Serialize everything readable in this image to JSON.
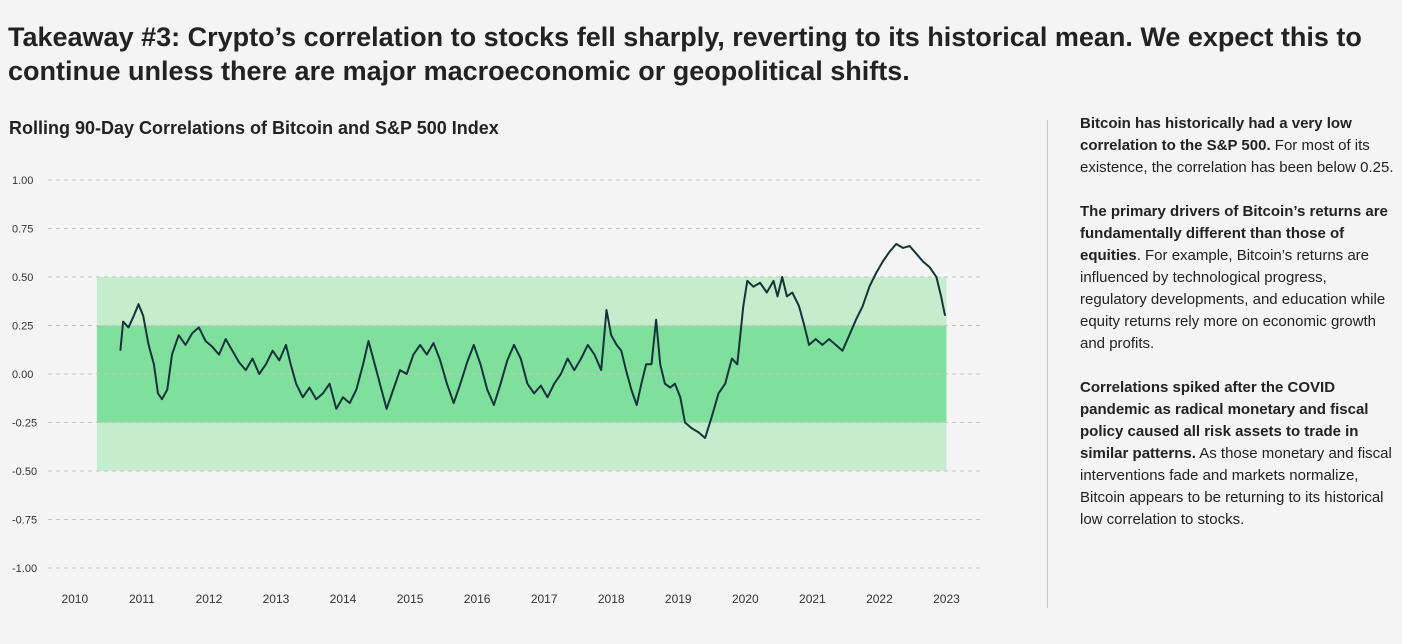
{
  "headline": "Takeaway #3: Crypto’s correlation to stocks fell sharply, reverting to its historical mean. We expect this to continue unless there are major macroeconomic or geopolitical shifts.",
  "chart_data": {
    "type": "line",
    "title": "Rolling 90-Day Correlations of Bitcoin and S&P 500 Index",
    "xlabel": "",
    "ylabel": "",
    "xlim": [
      2009.6,
      2023.5
    ],
    "ylim": [
      -1.0,
      1.0
    ],
    "y_ticks": [
      "1.00",
      "0.75",
      "0.50",
      "0.25",
      "0.00",
      "-0.25",
      "-0.50",
      "-0.75",
      "-1.00"
    ],
    "y_tick_values": [
      1.0,
      0.75,
      0.5,
      0.25,
      0.0,
      -0.25,
      -0.5,
      -0.75,
      -1.0
    ],
    "x_ticks": [
      "2010",
      "2011",
      "2012",
      "2013",
      "2014",
      "2015",
      "2016",
      "2017",
      "2018",
      "2019",
      "2020",
      "2021",
      "2022",
      "2023"
    ],
    "grid": true,
    "bands": [
      {
        "name": "outer",
        "x_start": 2010.33,
        "x_end": 2023.0,
        "y_low": -0.5,
        "y_high": 0.5,
        "color": "#c5eccd"
      },
      {
        "name": "inner",
        "x_start": 2010.33,
        "x_end": 2023.0,
        "y_low": -0.25,
        "y_high": 0.25,
        "color": "#7fe09d"
      }
    ],
    "series": [
      {
        "name": "Rolling 90-Day Correlation",
        "color": "#16323a",
        "points": [
          [
            2010.68,
            0.12
          ],
          [
            2010.72,
            0.27
          ],
          [
            2010.8,
            0.24
          ],
          [
            2010.88,
            0.3
          ],
          [
            2010.95,
            0.36
          ],
          [
            2011.02,
            0.3
          ],
          [
            2011.1,
            0.15
          ],
          [
            2011.18,
            0.05
          ],
          [
            2011.24,
            -0.1
          ],
          [
            2011.3,
            -0.13
          ],
          [
            2011.38,
            -0.08
          ],
          [
            2011.45,
            0.1
          ],
          [
            2011.55,
            0.2
          ],
          [
            2011.65,
            0.15
          ],
          [
            2011.75,
            0.21
          ],
          [
            2011.85,
            0.24
          ],
          [
            2011.95,
            0.17
          ],
          [
            2012.05,
            0.14
          ],
          [
            2012.15,
            0.1
          ],
          [
            2012.25,
            0.18
          ],
          [
            2012.35,
            0.12
          ],
          [
            2012.45,
            0.06
          ],
          [
            2012.55,
            0.02
          ],
          [
            2012.65,
            0.08
          ],
          [
            2012.75,
            0.0
          ],
          [
            2012.85,
            0.05
          ],
          [
            2012.95,
            0.12
          ],
          [
            2013.05,
            0.07
          ],
          [
            2013.15,
            0.15
          ],
          [
            2013.22,
            0.05
          ],
          [
            2013.3,
            -0.05
          ],
          [
            2013.4,
            -0.12
          ],
          [
            2013.5,
            -0.07
          ],
          [
            2013.6,
            -0.13
          ],
          [
            2013.7,
            -0.1
          ],
          [
            2013.8,
            -0.05
          ],
          [
            2013.9,
            -0.18
          ],
          [
            2014.0,
            -0.12
          ],
          [
            2014.1,
            -0.15
          ],
          [
            2014.2,
            -0.08
          ],
          [
            2014.3,
            0.05
          ],
          [
            2014.38,
            0.17
          ],
          [
            2014.45,
            0.08
          ],
          [
            2014.55,
            -0.05
          ],
          [
            2014.65,
            -0.18
          ],
          [
            2014.75,
            -0.08
          ],
          [
            2014.85,
            0.02
          ],
          [
            2014.95,
            0.0
          ],
          [
            2015.05,
            0.1
          ],
          [
            2015.15,
            0.15
          ],
          [
            2015.25,
            0.1
          ],
          [
            2015.35,
            0.16
          ],
          [
            2015.45,
            0.07
          ],
          [
            2015.55,
            -0.05
          ],
          [
            2015.65,
            -0.15
          ],
          [
            2015.75,
            -0.05
          ],
          [
            2015.85,
            0.06
          ],
          [
            2015.95,
            0.15
          ],
          [
            2016.05,
            0.05
          ],
          [
            2016.15,
            -0.08
          ],
          [
            2016.25,
            -0.16
          ],
          [
            2016.35,
            -0.05
          ],
          [
            2016.45,
            0.07
          ],
          [
            2016.55,
            0.15
          ],
          [
            2016.65,
            0.08
          ],
          [
            2016.75,
            -0.05
          ],
          [
            2016.85,
            -0.1
          ],
          [
            2016.95,
            -0.06
          ],
          [
            2017.05,
            -0.12
          ],
          [
            2017.15,
            -0.05
          ],
          [
            2017.25,
            0.0
          ],
          [
            2017.35,
            0.08
          ],
          [
            2017.45,
            0.02
          ],
          [
            2017.55,
            0.08
          ],
          [
            2017.65,
            0.15
          ],
          [
            2017.75,
            0.1
          ],
          [
            2017.85,
            0.02
          ],
          [
            2017.93,
            0.33
          ],
          [
            2018.0,
            0.2
          ],
          [
            2018.08,
            0.15
          ],
          [
            2018.15,
            0.12
          ],
          [
            2018.22,
            0.02
          ],
          [
            2018.3,
            -0.08
          ],
          [
            2018.38,
            -0.16
          ],
          [
            2018.45,
            -0.05
          ],
          [
            2018.52,
            0.05
          ],
          [
            2018.6,
            0.05
          ],
          [
            2018.67,
            0.28
          ],
          [
            2018.73,
            0.05
          ],
          [
            2018.8,
            -0.05
          ],
          [
            2018.88,
            -0.07
          ],
          [
            2018.95,
            -0.05
          ],
          [
            2019.03,
            -0.12
          ],
          [
            2019.1,
            -0.25
          ],
          [
            2019.2,
            -0.28
          ],
          [
            2019.3,
            -0.3
          ],
          [
            2019.4,
            -0.33
          ],
          [
            2019.5,
            -0.22
          ],
          [
            2019.6,
            -0.1
          ],
          [
            2019.7,
            -0.05
          ],
          [
            2019.8,
            0.08
          ],
          [
            2019.88,
            0.05
          ],
          [
            2019.97,
            0.35
          ],
          [
            2020.03,
            0.48
          ],
          [
            2020.12,
            0.45
          ],
          [
            2020.22,
            0.47
          ],
          [
            2020.32,
            0.42
          ],
          [
            2020.42,
            0.48
          ],
          [
            2020.48,
            0.4
          ],
          [
            2020.55,
            0.5
          ],
          [
            2020.62,
            0.4
          ],
          [
            2020.7,
            0.42
          ],
          [
            2020.8,
            0.35
          ],
          [
            2020.88,
            0.25
          ],
          [
            2020.95,
            0.15
          ],
          [
            2021.05,
            0.18
          ],
          [
            2021.15,
            0.15
          ],
          [
            2021.25,
            0.18
          ],
          [
            2021.35,
            0.15
          ],
          [
            2021.45,
            0.12
          ],
          [
            2021.55,
            0.2
          ],
          [
            2021.65,
            0.28
          ],
          [
            2021.75,
            0.35
          ],
          [
            2021.85,
            0.45
          ],
          [
            2021.95,
            0.52
          ],
          [
            2022.05,
            0.58
          ],
          [
            2022.15,
            0.63
          ],
          [
            2022.25,
            0.67
          ],
          [
            2022.35,
            0.65
          ],
          [
            2022.45,
            0.66
          ],
          [
            2022.55,
            0.62
          ],
          [
            2022.65,
            0.58
          ],
          [
            2022.75,
            0.55
          ],
          [
            2022.85,
            0.5
          ],
          [
            2022.92,
            0.4
          ],
          [
            2022.98,
            0.3
          ]
        ]
      }
    ]
  },
  "sidebar": {
    "p1_bold": "Bitcoin has historically had a very low correlation to the S&P 500.",
    "p1_text": " For most of its existence, the correlation has been below 0.25.",
    "p2_bold": "The primary drivers of Bitcoin’s returns are fundamentally different than those of equities",
    "p2_text": ". For example, Bitcoin’s returns are influenced by technological progress, regulatory developments, and education while equity returns rely more on economic growth and profits.",
    "p3_bold": "Correlations spiked after the COVID pandemic as radical monetary and fiscal policy caused all risk assets to trade in similar patterns.",
    "p3_text": " As those monetary and fiscal interventions fade and markets normalize, Bitcoin appears to be returning to its historical low correlation to stocks."
  }
}
